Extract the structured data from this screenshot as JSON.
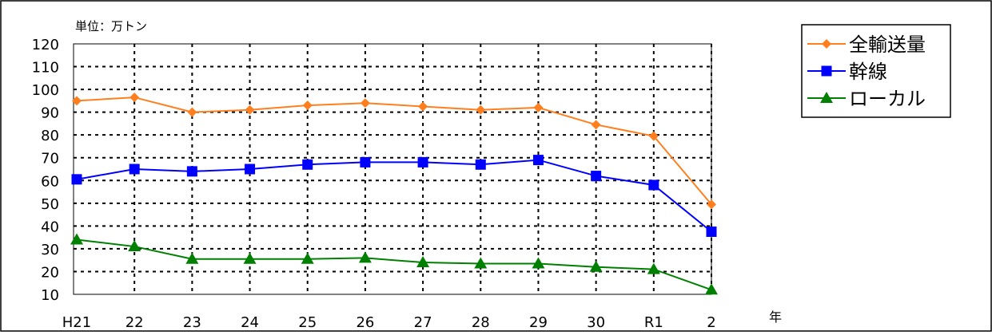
{
  "chart_data": {
    "type": "line",
    "unit_label": "単位：万トン",
    "x_axis_label": "年",
    "categories": [
      "H21",
      "22",
      "23",
      "24",
      "25",
      "26",
      "27",
      "28",
      "29",
      "30",
      "R1",
      "2"
    ],
    "ylim": [
      10,
      120
    ],
    "y_ticks": [
      10,
      20,
      30,
      40,
      50,
      60,
      70,
      80,
      90,
      100,
      110,
      120
    ],
    "grid": true,
    "legend_position": "top-right",
    "series": [
      {
        "name": "全輸送量",
        "color": "#ff7f1e",
        "marker": "diamond",
        "values": [
          95,
          96.5,
          90,
          91,
          93,
          94,
          92.5,
          91,
          92,
          84.5,
          79.5,
          49.5
        ]
      },
      {
        "name": "幹線",
        "color": "#0000ff",
        "marker": "square",
        "values": [
          60.5,
          65,
          64,
          65,
          67,
          68,
          68,
          67,
          69,
          62,
          58,
          37.5
        ]
      },
      {
        "name": "ローカル",
        "color": "#008000",
        "marker": "triangle",
        "values": [
          34,
          31,
          25.5,
          25.5,
          25.5,
          26,
          24,
          23.5,
          23.5,
          22,
          21,
          12
        ]
      }
    ]
  }
}
